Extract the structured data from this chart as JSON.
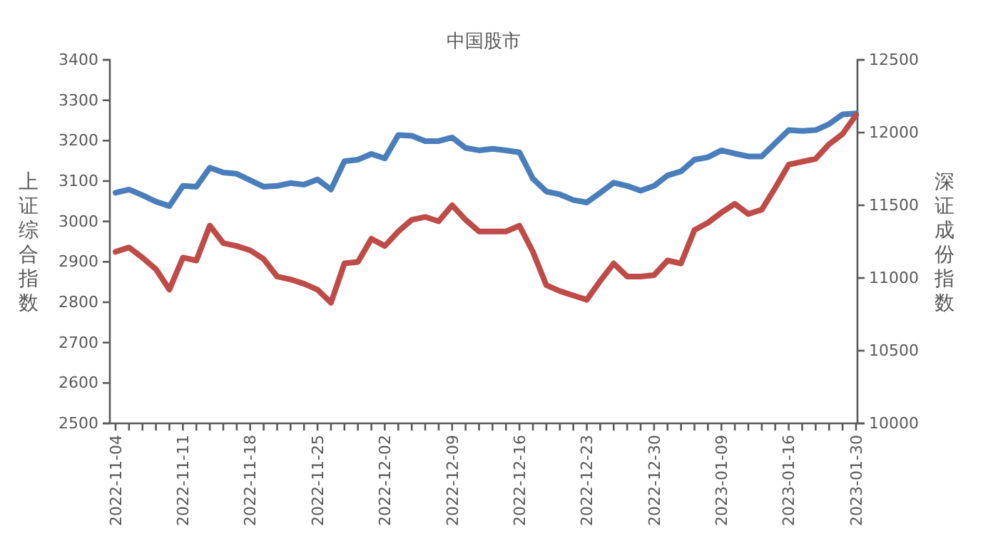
{
  "chart_data": {
    "type": "line",
    "title": "中国股市",
    "ylabel": "上证综合指数",
    "y2label": "深证成份指数",
    "categories": [
      "2022-11-04",
      null,
      null,
      null,
      null,
      "2022-11-11",
      null,
      null,
      null,
      null,
      "2022-11-18",
      null,
      null,
      null,
      null,
      "2022-11-25",
      null,
      null,
      null,
      null,
      "2022-12-02",
      null,
      null,
      null,
      null,
      "2022-12-09",
      null,
      null,
      null,
      null,
      "2022-12-16",
      null,
      null,
      null,
      null,
      "2022-12-23",
      null,
      null,
      null,
      null,
      "2022-12-30",
      null,
      null,
      null,
      null,
      "2023-01-09",
      null,
      null,
      null,
      null,
      "2023-01-16",
      null,
      null,
      null,
      null,
      "2023-01-30"
    ],
    "series": [
      {
        "color": "#4a7ebb",
        "values": [
          3071,
          3079,
          3065,
          3049,
          3038,
          3088,
          3086,
          3133,
          3121,
          3118,
          3102,
          3086,
          3088,
          3095,
          3091,
          3104,
          3079,
          3149,
          3153,
          3167,
          3156,
          3214,
          3212,
          3199,
          3199,
          3208,
          3182,
          3176,
          3180,
          3176,
          3171,
          3106,
          3074,
          3067,
          3053,
          3047,
          3071,
          3096,
          3088,
          3076,
          3088,
          3114,
          3124,
          3153,
          3159,
          3176,
          3168,
          3161,
          3161,
          3194,
          3226,
          3224,
          3226,
          3241,
          3265,
          3267
        ]
      },
      {
        "color": "#be4b48",
        "axis": "y2",
        "values": [
          11180,
          11210,
          11140,
          11060,
          10920,
          11140,
          11120,
          11360,
          11240,
          11220,
          11190,
          11130,
          11010,
          10990,
          10960,
          10920,
          10830,
          11100,
          11110,
          11270,
          11220,
          11320,
          11400,
          11420,
          11390,
          11500,
          11400,
          11320,
          11320,
          11320,
          11360,
          11180,
          10950,
          10910,
          10880,
          10850,
          10980,
          11100,
          11010,
          11010,
          11020,
          11120,
          11100,
          11330,
          11380,
          11450,
          11510,
          11440,
          11470,
          11620,
          11780,
          11800,
          11820,
          11920,
          11990,
          12120
        ]
      }
    ],
    "ylim": [
      2500,
      3400
    ],
    "yticks": [
      2500,
      2600,
      2700,
      2800,
      2900,
      3000,
      3100,
      3200,
      3300,
      3400
    ],
    "y2lim": [
      10000,
      12500
    ],
    "y2ticks": [
      10000,
      10500,
      11000,
      11500,
      12000,
      12500
    ],
    "grid": false,
    "marker": "none",
    "line_style": "solid"
  }
}
